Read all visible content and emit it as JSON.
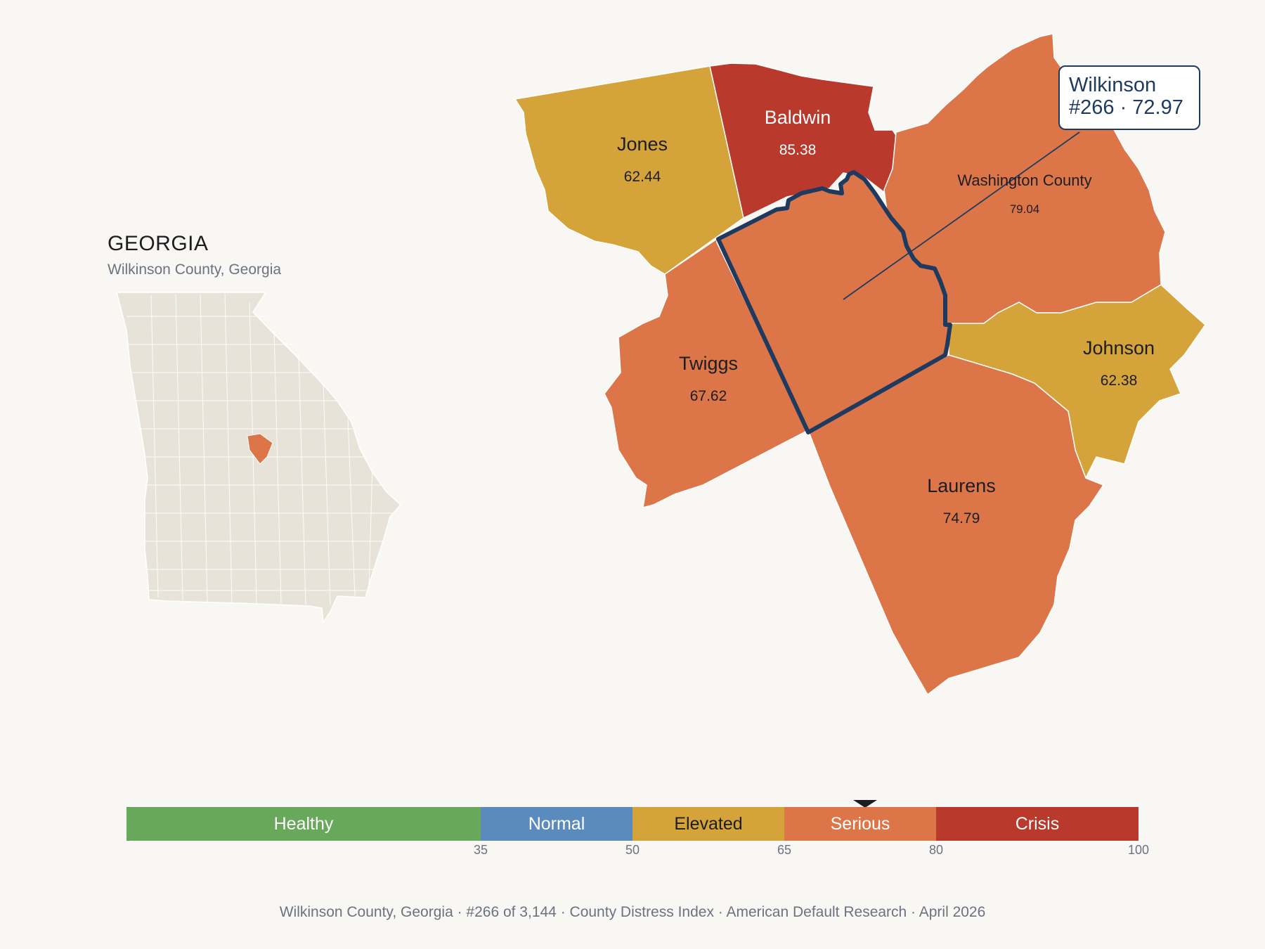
{
  "state": {
    "title": "GEORGIA",
    "subtitle": "Wilkinson County, Georgia"
  },
  "focus": {
    "name": "Wilkinson",
    "rank": "#266",
    "score": "72.97",
    "callout_line1": "Wilkinson",
    "callout_line2": "#266 · 72.97"
  },
  "counties": [
    {
      "name": "Jones",
      "value": "62.44",
      "category": "Elevated"
    },
    {
      "name": "Baldwin",
      "value": "85.38",
      "category": "Crisis"
    },
    {
      "name": "Washington County",
      "value": "79.04",
      "category": "Serious"
    },
    {
      "name": "Twiggs",
      "value": "67.62",
      "category": "Serious"
    },
    {
      "name": "Johnson",
      "value": "62.38",
      "category": "Elevated"
    },
    {
      "name": "Laurens",
      "value": "74.79",
      "category": "Serious"
    }
  ],
  "legend": {
    "segments": [
      {
        "label": "Healthy",
        "min": 0,
        "max": 35,
        "color": "#67a85a"
      },
      {
        "label": "Normal",
        "min": 35,
        "max": 50,
        "color": "#5b8bbd"
      },
      {
        "label": "Elevated",
        "min": 50,
        "max": 65,
        "color": "#d4a33a"
      },
      {
        "label": "Serious",
        "min": 65,
        "max": 80,
        "color": "#dc7649"
      },
      {
        "label": "Crisis",
        "min": 80,
        "max": 100,
        "color": "#b93a2c"
      }
    ],
    "ticks": [
      "35",
      "50",
      "65",
      "80",
      "100"
    ],
    "marker_value": 72.97
  },
  "colors": {
    "elevated": "#d4a33a",
    "serious": "#dc7649",
    "crisis": "#b93a2c",
    "focus_outline": "#1f3a5f",
    "state_fill": "#e8e3d9"
  },
  "footer": "Wilkinson County, Georgia  ·  #266 of 3,144  ·  County Distress Index  ·  American Default Research  ·  April 2026"
}
